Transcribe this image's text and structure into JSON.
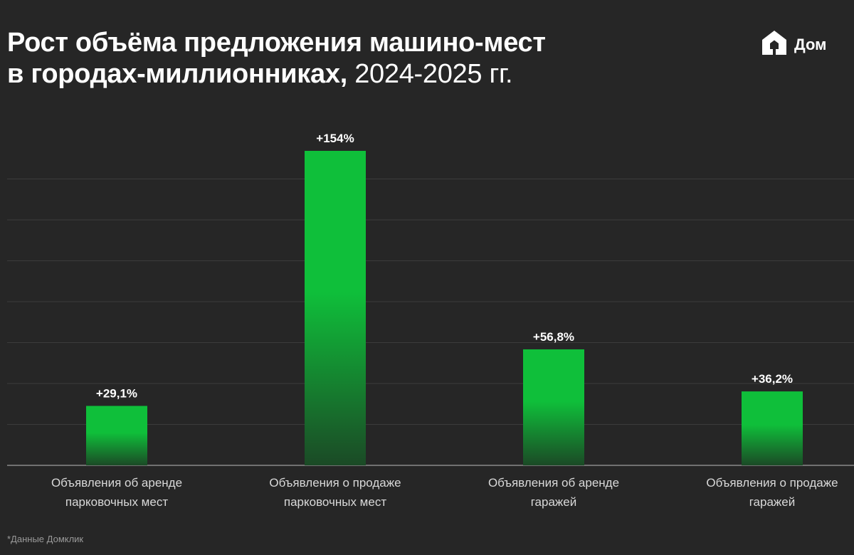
{
  "header": {
    "title_line1": "Рост объёма предложения машино-мест",
    "title_line2_bold": "в городах-миллионниках,",
    "title_line2_light": " 2024-2025 гг."
  },
  "logo": {
    "icon": "house-logo-icon",
    "text": "Дом"
  },
  "footnote": "*Данные Домклик",
  "colors": {
    "background": "#262626",
    "bar_top": "#0fbf3a",
    "bar_bottom": "#1b4a26",
    "grid": "#3c3c3c",
    "axis": "#8a8a8a"
  },
  "chart_data": {
    "type": "bar",
    "title": "Рост объёма предложения машино-мест в городах-миллионниках, 2024-2025 гг.",
    "categories": [
      [
        "Объявления об аренде",
        "парковочных мест"
      ],
      [
        "Объявления о продаже",
        "парковочных мест"
      ],
      [
        "Объявления об аренде",
        "гаражей"
      ],
      [
        "Объявления о продаже",
        "гаражей"
      ]
    ],
    "values": [
      29.1,
      154,
      56.8,
      36.2
    ],
    "value_labels": [
      "+29,1%",
      "+154%",
      "+56,8%",
      "+36,2%"
    ],
    "unit": "%",
    "grid": true,
    "legend": "none"
  }
}
